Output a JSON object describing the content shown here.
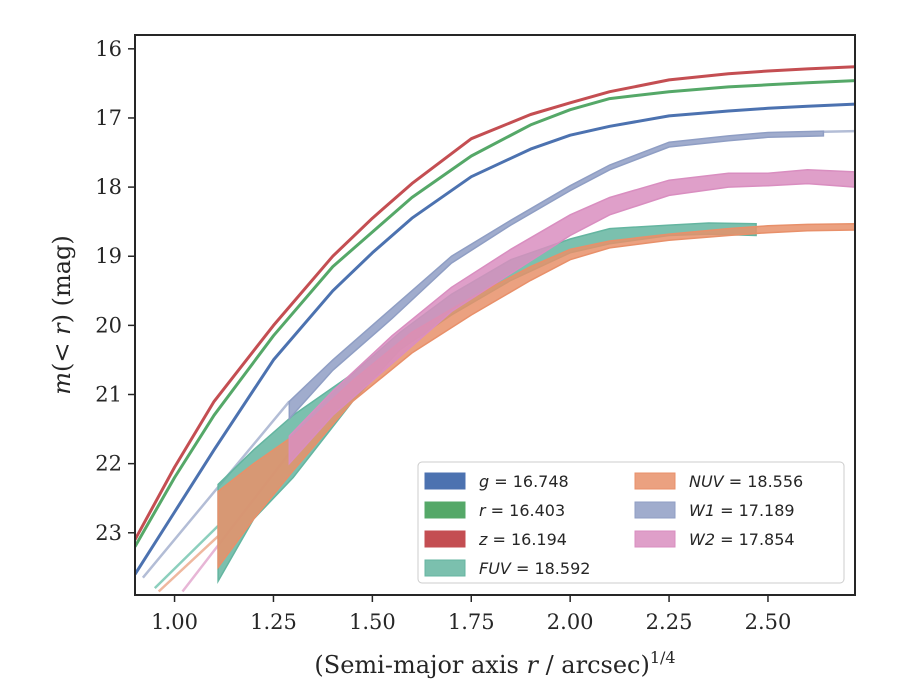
{
  "chart_data": {
    "type": "line",
    "xlabel_main": "(Semi-major axis ",
    "xlabel_var": "r",
    "xlabel_unit": " / arcsec)",
    "xlabel_exp": "1/4",
    "ylabel_m": "m",
    "ylabel_open": "(",
    "ylabel_lt": "< ",
    "ylabel_r": "r",
    "ylabel_close": ") (mag)",
    "xlim": [
      0.9,
      2.72
    ],
    "ylim": [
      23.9,
      15.8
    ],
    "y_inverted": true,
    "xticks": [
      1.0,
      1.25,
      1.5,
      1.75,
      2.0,
      2.25,
      2.5
    ],
    "xtick_labels": [
      "1.00",
      "1.25",
      "1.50",
      "1.75",
      "2.00",
      "2.25",
      "2.50"
    ],
    "yticks": [
      16,
      17,
      18,
      19,
      20,
      21,
      22,
      23
    ],
    "ytick_labels": [
      "16",
      "17",
      "18",
      "19",
      "20",
      "21",
      "22",
      "23"
    ],
    "grid": false,
    "legend_position": "lower-right",
    "series": [
      {
        "name": "g",
        "value": "16.748",
        "color": "#4c72b0",
        "kind": "line",
        "x": [
          0.9,
          1.0,
          1.1,
          1.25,
          1.4,
          1.5,
          1.6,
          1.75,
          1.9,
          2.0,
          2.1,
          2.25,
          2.4,
          2.5,
          2.6,
          2.72
        ],
        "y": [
          23.6,
          22.7,
          21.8,
          20.5,
          19.5,
          18.95,
          18.45,
          17.85,
          17.45,
          17.25,
          17.12,
          16.97,
          16.9,
          16.86,
          16.83,
          16.8
        ]
      },
      {
        "name": "r",
        "value": "16.403",
        "color": "#55a868",
        "kind": "line",
        "x": [
          0.9,
          1.0,
          1.1,
          1.25,
          1.4,
          1.5,
          1.6,
          1.75,
          1.9,
          2.0,
          2.1,
          2.25,
          2.4,
          2.5,
          2.6,
          2.72
        ],
        "y": [
          23.2,
          22.2,
          21.3,
          20.15,
          19.15,
          18.65,
          18.15,
          17.55,
          17.1,
          16.88,
          16.72,
          16.62,
          16.55,
          16.52,
          16.49,
          16.46
        ]
      },
      {
        "name": "z",
        "value": "16.194",
        "color": "#c44e52",
        "kind": "line",
        "x": [
          0.9,
          1.0,
          1.1,
          1.25,
          1.4,
          1.5,
          1.6,
          1.75,
          1.9,
          2.0,
          2.1,
          2.25,
          2.4,
          2.5,
          2.6,
          2.72
        ],
        "y": [
          23.1,
          22.05,
          21.1,
          20.0,
          19.0,
          18.45,
          17.95,
          17.3,
          16.95,
          16.78,
          16.62,
          16.45,
          16.36,
          16.32,
          16.29,
          16.26
        ]
      },
      {
        "name": "FUV",
        "value": "18.592",
        "color": "#64b5a0",
        "kind": "band",
        "x": [
          1.11,
          1.2,
          1.3,
          1.45,
          1.57,
          1.7,
          1.85,
          2.0,
          2.1,
          2.25,
          2.35,
          2.47
        ],
        "y_low": [
          23.7,
          22.8,
          22.2,
          21.1,
          20.35,
          19.85,
          19.35,
          18.95,
          18.82,
          18.7,
          18.68,
          18.7
        ],
        "y_high": [
          22.3,
          21.8,
          21.3,
          20.7,
          20.1,
          19.55,
          19.05,
          18.75,
          18.6,
          18.55,
          18.52,
          18.53
        ]
      },
      {
        "name": "NUV",
        "value": "18.556",
        "color": "#e8906a",
        "kind": "band",
        "x": [
          1.11,
          1.2,
          1.3,
          1.45,
          1.6,
          1.75,
          1.9,
          2.0,
          2.1,
          2.25,
          2.4,
          2.5,
          2.6,
          2.72
        ],
        "y_low": [
          23.5,
          22.8,
          22.1,
          21.1,
          20.4,
          19.85,
          19.35,
          19.05,
          18.88,
          18.77,
          18.7,
          18.66,
          18.63,
          18.62
        ],
        "y_high": [
          22.4,
          22.0,
          21.6,
          20.8,
          20.1,
          19.6,
          19.15,
          18.9,
          18.78,
          18.68,
          18.6,
          18.56,
          18.54,
          18.53
        ]
      },
      {
        "name": "W1",
        "value": "17.189",
        "color": "#8f9ec4",
        "kind": "band",
        "x": [
          1.29,
          1.4,
          1.55,
          1.7,
          1.85,
          2.0,
          2.1,
          2.25,
          2.4,
          2.5,
          2.64
        ],
        "y_low": [
          21.35,
          20.65,
          19.9,
          19.1,
          18.55,
          18.05,
          17.75,
          17.42,
          17.33,
          17.28,
          17.26
        ],
        "y_high": [
          21.1,
          20.5,
          19.75,
          19.0,
          18.48,
          17.98,
          17.68,
          17.35,
          17.26,
          17.21,
          17.19
        ]
      },
      {
        "name": "W2",
        "value": "17.854",
        "color": "#d98ec0",
        "kind": "band",
        "x": [
          1.29,
          1.4,
          1.55,
          1.7,
          1.85,
          2.0,
          2.1,
          2.25,
          2.4,
          2.5,
          2.6,
          2.72
        ],
        "y_low": [
          22.0,
          21.3,
          20.55,
          19.8,
          19.25,
          18.7,
          18.4,
          18.12,
          18.0,
          17.98,
          17.95,
          18.0
        ],
        "y_high": [
          21.6,
          20.95,
          20.15,
          19.45,
          18.9,
          18.4,
          18.15,
          17.9,
          17.8,
          17.8,
          17.75,
          17.78
        ]
      }
    ],
    "extrapolations": [
      {
        "series": "W1",
        "color": "#b3bdd6",
        "x": [
          0.92,
          1.29
        ],
        "y": [
          23.65,
          21.1
        ]
      },
      {
        "series": "W1",
        "color": "#b3bdd6",
        "x": [
          2.64,
          2.72
        ],
        "y": [
          17.2,
          17.19
        ]
      },
      {
        "series": "FUV",
        "color": "#8ccfbd",
        "x": [
          0.95,
          1.11
        ],
        "y": [
          23.8,
          22.9
        ]
      },
      {
        "series": "NUV",
        "color": "#efb89f",
        "x": [
          0.96,
          1.11
        ],
        "y": [
          23.85,
          23.05
        ]
      },
      {
        "series": "W2",
        "color": "#e7b6d6",
        "x": [
          1.02,
          1.29
        ],
        "y": [
          23.85,
          21.85
        ]
      }
    ]
  }
}
